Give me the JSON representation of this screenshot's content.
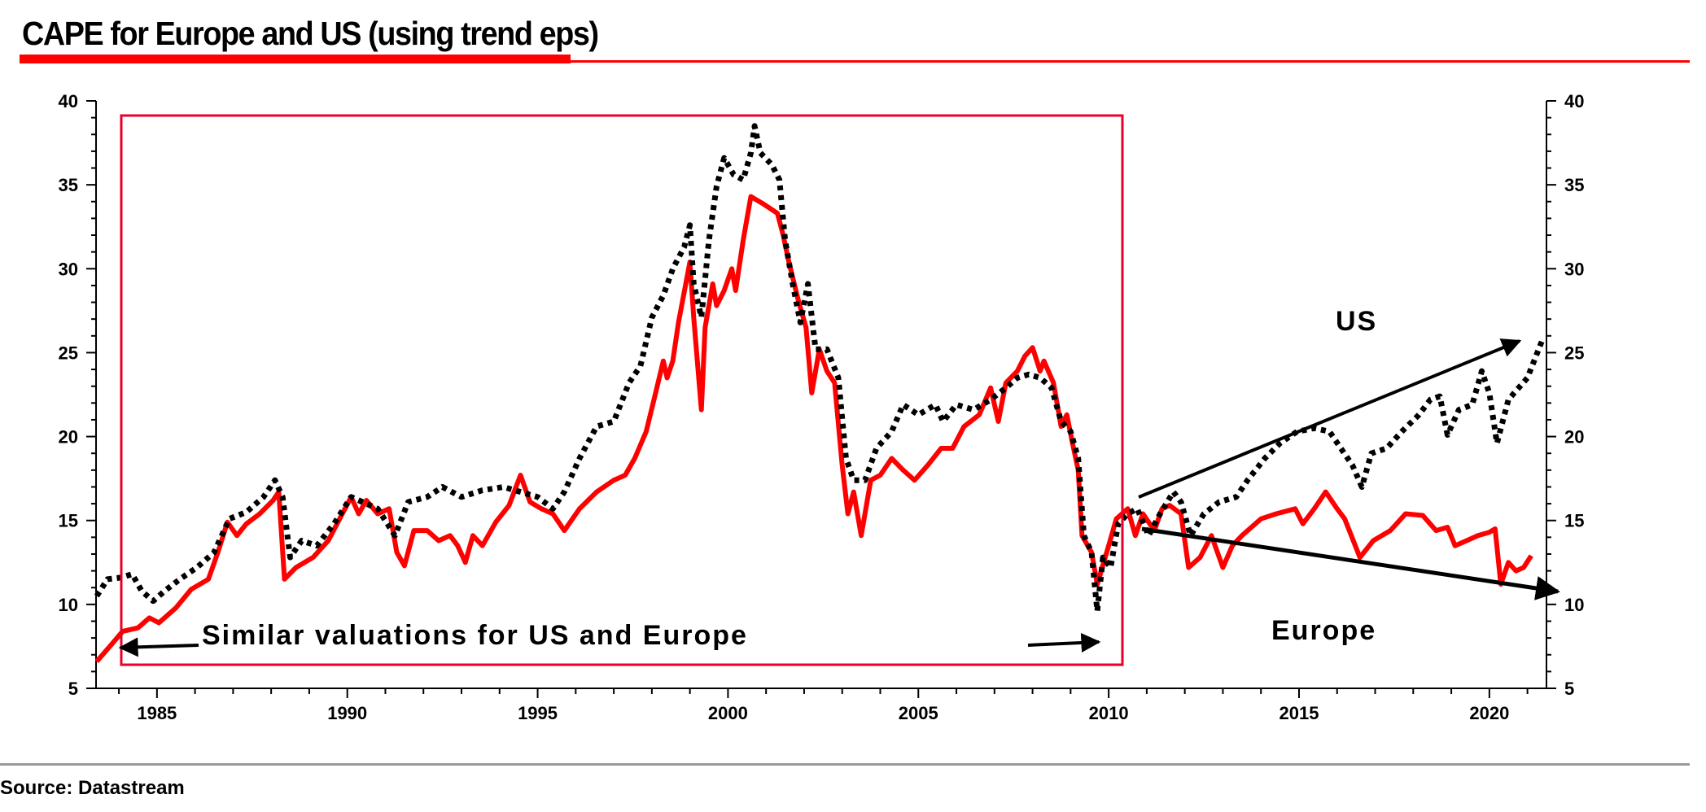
{
  "title": "CAPE for Europe and US (using trend eps)",
  "source": "Source: Datastream",
  "colors": {
    "accent": "#ff0000",
    "europe": "#ff0000",
    "us": "#000000",
    "box": "#e8002a",
    "rule": "#999999"
  },
  "chart_data": {
    "type": "line",
    "title": "CAPE for Europe and US (using trend eps)",
    "xlim": [
      1983.4,
      2021.5
    ],
    "ylim": [
      5,
      40
    ],
    "x_ticks": [
      "1985",
      "1990",
      "1995",
      "2000",
      "2005",
      "2010",
      "2015",
      "2020"
    ],
    "y_ticks_left": [
      "5",
      "10",
      "15",
      "20",
      "25",
      "30",
      "35",
      "40"
    ],
    "y_ticks_right": [
      "5",
      "10",
      "15",
      "20",
      "25",
      "30",
      "35",
      "40"
    ],
    "grid": false,
    "legend": "none",
    "series": [
      {
        "name": "Europe",
        "style": "solid",
        "color": "#ff0000",
        "points": [
          [
            1983.42,
            6.6
          ],
          [
            1983.8,
            7.6
          ],
          [
            1984.1,
            8.4
          ],
          [
            1984.5,
            8.6
          ],
          [
            1984.8,
            9.2
          ],
          [
            1985.05,
            8.9
          ],
          [
            1985.5,
            9.8
          ],
          [
            1985.9,
            10.9
          ],
          [
            1986.35,
            11.5
          ],
          [
            1986.6,
            13.1
          ],
          [
            1986.85,
            14.9
          ],
          [
            1987.1,
            14.1
          ],
          [
            1987.35,
            14.8
          ],
          [
            1987.7,
            15.4
          ],
          [
            1988.05,
            16.2
          ],
          [
            1988.2,
            16.7
          ],
          [
            1988.35,
            11.5
          ],
          [
            1988.65,
            12.2
          ],
          [
            1989.1,
            12.8
          ],
          [
            1989.5,
            13.8
          ],
          [
            1989.8,
            15.1
          ],
          [
            1990.1,
            16.4
          ],
          [
            1990.3,
            15.4
          ],
          [
            1990.5,
            16.2
          ],
          [
            1990.8,
            15.4
          ],
          [
            1991.1,
            15.7
          ],
          [
            1991.3,
            13.1
          ],
          [
            1991.5,
            12.3
          ],
          [
            1991.75,
            14.4
          ],
          [
            1992.1,
            14.4
          ],
          [
            1992.4,
            13.8
          ],
          [
            1992.7,
            14.1
          ],
          [
            1992.9,
            13.5
          ],
          [
            1993.1,
            12.5
          ],
          [
            1993.3,
            14.1
          ],
          [
            1993.55,
            13.5
          ],
          [
            1993.9,
            14.9
          ],
          [
            1994.25,
            15.9
          ],
          [
            1994.55,
            17.7
          ],
          [
            1994.8,
            16.1
          ],
          [
            1995.1,
            15.7
          ],
          [
            1995.4,
            15.4
          ],
          [
            1995.7,
            14.4
          ],
          [
            1996.1,
            15.7
          ],
          [
            1996.55,
            16.7
          ],
          [
            1997.0,
            17.4
          ],
          [
            1997.3,
            17.7
          ],
          [
            1997.55,
            18.7
          ],
          [
            1997.85,
            20.3
          ],
          [
            1998.1,
            22.6
          ],
          [
            1998.3,
            24.5
          ],
          [
            1998.4,
            23.5
          ],
          [
            1998.55,
            24.5
          ],
          [
            1998.7,
            26.8
          ],
          [
            1999.0,
            30.4
          ],
          [
            1999.1,
            27.1
          ],
          [
            1999.3,
            21.6
          ],
          [
            1999.4,
            26.5
          ],
          [
            1999.6,
            29.1
          ],
          [
            1999.7,
            27.8
          ],
          [
            1999.9,
            28.7
          ],
          [
            2000.1,
            30.0
          ],
          [
            2000.2,
            28.7
          ],
          [
            2000.4,
            31.7
          ],
          [
            2000.6,
            34.3
          ],
          [
            2000.9,
            33.9
          ],
          [
            2001.1,
            33.6
          ],
          [
            2001.3,
            33.3
          ],
          [
            2001.45,
            32.0
          ],
          [
            2001.6,
            30.4
          ],
          [
            2001.85,
            28.1
          ],
          [
            2002.05,
            26.5
          ],
          [
            2002.2,
            22.6
          ],
          [
            2002.4,
            25.2
          ],
          [
            2002.6,
            23.9
          ],
          [
            2002.8,
            23.2
          ],
          [
            2003.0,
            18.3
          ],
          [
            2003.15,
            15.4
          ],
          [
            2003.3,
            16.7
          ],
          [
            2003.5,
            14.1
          ],
          [
            2003.75,
            17.4
          ],
          [
            2004.0,
            17.7
          ],
          [
            2004.3,
            18.7
          ],
          [
            2004.6,
            18.0
          ],
          [
            2004.9,
            17.4
          ],
          [
            2005.25,
            18.3
          ],
          [
            2005.6,
            19.3
          ],
          [
            2005.9,
            19.3
          ],
          [
            2006.2,
            20.6
          ],
          [
            2006.6,
            21.3
          ],
          [
            2006.9,
            22.9
          ],
          [
            2007.1,
            20.9
          ],
          [
            2007.3,
            23.2
          ],
          [
            2007.6,
            23.9
          ],
          [
            2007.8,
            24.8
          ],
          [
            2008.0,
            25.3
          ],
          [
            2008.2,
            23.9
          ],
          [
            2008.3,
            24.5
          ],
          [
            2008.55,
            23.2
          ],
          [
            2008.75,
            20.6
          ],
          [
            2008.9,
            21.3
          ],
          [
            2009.05,
            19.6
          ],
          [
            2009.2,
            18.0
          ],
          [
            2009.3,
            14.1
          ],
          [
            2009.55,
            13.1
          ],
          [
            2009.7,
            11.2
          ],
          [
            2010.0,
            13.5
          ],
          [
            2010.2,
            15.1
          ],
          [
            2010.5,
            15.7
          ],
          [
            2010.7,
            14.1
          ],
          [
            2010.9,
            15.4
          ],
          [
            2011.2,
            14.4
          ],
          [
            2011.4,
            15.7
          ],
          [
            2011.6,
            15.9
          ],
          [
            2011.9,
            15.4
          ],
          [
            2012.1,
            12.2
          ],
          [
            2012.4,
            12.8
          ],
          [
            2012.7,
            14.1
          ],
          [
            2013.0,
            12.2
          ],
          [
            2013.25,
            13.5
          ],
          [
            2013.5,
            14.1
          ],
          [
            2014.0,
            15.1
          ],
          [
            2014.4,
            15.4
          ],
          [
            2014.9,
            15.7
          ],
          [
            2015.1,
            14.8
          ],
          [
            2015.4,
            15.7
          ],
          [
            2015.7,
            16.7
          ],
          [
            2016.0,
            15.7
          ],
          [
            2016.2,
            15.1
          ],
          [
            2016.6,
            12.8
          ],
          [
            2016.95,
            13.8
          ],
          [
            2017.4,
            14.4
          ],
          [
            2017.8,
            15.4
          ],
          [
            2018.25,
            15.3
          ],
          [
            2018.6,
            14.4
          ],
          [
            2018.9,
            14.6
          ],
          [
            2019.1,
            13.5
          ],
          [
            2019.4,
            13.8
          ],
          [
            2019.7,
            14.1
          ],
          [
            2020.0,
            14.3
          ],
          [
            2020.15,
            14.5
          ],
          [
            2020.3,
            11.2
          ],
          [
            2020.5,
            12.5
          ],
          [
            2020.7,
            12.0
          ],
          [
            2020.9,
            12.2
          ],
          [
            2021.1,
            12.9
          ]
        ]
      },
      {
        "name": "US",
        "style": "dotted",
        "color": "#000000",
        "points": [
          [
            1983.42,
            10.5
          ],
          [
            1983.7,
            11.5
          ],
          [
            1984.05,
            11.6
          ],
          [
            1984.35,
            11.8
          ],
          [
            1984.6,
            10.8
          ],
          [
            1984.9,
            10.2
          ],
          [
            1985.2,
            10.8
          ],
          [
            1985.6,
            11.5
          ],
          [
            1986.05,
            12.2
          ],
          [
            1986.5,
            13.1
          ],
          [
            1986.9,
            15.1
          ],
          [
            1987.35,
            15.5
          ],
          [
            1987.8,
            16.4
          ],
          [
            1988.1,
            17.4
          ],
          [
            1988.3,
            16.4
          ],
          [
            1988.5,
            12.8
          ],
          [
            1988.8,
            13.8
          ],
          [
            1989.2,
            13.5
          ],
          [
            1989.65,
            14.8
          ],
          [
            1990.1,
            16.4
          ],
          [
            1990.4,
            16.1
          ],
          [
            1990.8,
            15.7
          ],
          [
            1991.25,
            14.1
          ],
          [
            1991.6,
            16.1
          ],
          [
            1992.1,
            16.4
          ],
          [
            1992.5,
            17.0
          ],
          [
            1993.0,
            16.4
          ],
          [
            1993.55,
            16.8
          ],
          [
            1994.1,
            17.0
          ],
          [
            1994.55,
            16.7
          ],
          [
            1995.0,
            16.4
          ],
          [
            1995.4,
            15.7
          ],
          [
            1995.7,
            16.7
          ],
          [
            1996.1,
            18.7
          ],
          [
            1996.55,
            20.6
          ],
          [
            1997.0,
            20.9
          ],
          [
            1997.4,
            23.2
          ],
          [
            1997.7,
            24.2
          ],
          [
            1998.0,
            27.1
          ],
          [
            1998.3,
            28.4
          ],
          [
            1998.55,
            30.0
          ],
          [
            1998.85,
            31.3
          ],
          [
            1999.0,
            32.6
          ],
          [
            1999.1,
            29.1
          ],
          [
            1999.3,
            27.1
          ],
          [
            1999.5,
            31.7
          ],
          [
            1999.7,
            34.9
          ],
          [
            1999.9,
            36.6
          ],
          [
            2000.15,
            35.6
          ],
          [
            2000.4,
            35.3
          ],
          [
            2000.6,
            36.9
          ],
          [
            2000.7,
            38.5
          ],
          [
            2000.85,
            36.9
          ],
          [
            2001.15,
            36.2
          ],
          [
            2001.35,
            35.3
          ],
          [
            2001.5,
            31.7
          ],
          [
            2001.7,
            29.1
          ],
          [
            2001.9,
            26.8
          ],
          [
            2002.1,
            29.1
          ],
          [
            2002.3,
            25.2
          ],
          [
            2002.6,
            25.2
          ],
          [
            2002.9,
            23.5
          ],
          [
            2003.1,
            18.7
          ],
          [
            2003.3,
            17.4
          ],
          [
            2003.6,
            17.4
          ],
          [
            2003.9,
            19.3
          ],
          [
            2004.3,
            20.3
          ],
          [
            2004.6,
            21.9
          ],
          [
            2005.0,
            21.3
          ],
          [
            2005.45,
            21.9
          ],
          [
            2005.65,
            20.9
          ],
          [
            2006.0,
            21.9
          ],
          [
            2006.45,
            21.6
          ],
          [
            2006.9,
            22.2
          ],
          [
            2007.3,
            22.9
          ],
          [
            2007.6,
            23.5
          ],
          [
            2007.9,
            23.7
          ],
          [
            2008.2,
            23.5
          ],
          [
            2008.5,
            22.9
          ],
          [
            2008.75,
            20.9
          ],
          [
            2009.0,
            20.3
          ],
          [
            2009.2,
            18.7
          ],
          [
            2009.35,
            14.1
          ],
          [
            2009.55,
            13.1
          ],
          [
            2009.7,
            9.6
          ],
          [
            2009.85,
            12.8
          ],
          [
            2010.05,
            12.2
          ],
          [
            2010.25,
            14.8
          ],
          [
            2010.5,
            15.4
          ],
          [
            2010.75,
            15.7
          ],
          [
            2011.05,
            14.1
          ],
          [
            2011.35,
            15.4
          ],
          [
            2011.7,
            16.7
          ],
          [
            2011.9,
            16.1
          ],
          [
            2012.15,
            14.1
          ],
          [
            2012.5,
            15.4
          ],
          [
            2012.9,
            16.1
          ],
          [
            2013.35,
            16.4
          ],
          [
            2013.65,
            17.4
          ],
          [
            2014.1,
            18.7
          ],
          [
            2014.5,
            19.6
          ],
          [
            2014.95,
            20.3
          ],
          [
            2015.4,
            20.5
          ],
          [
            2015.8,
            20.3
          ],
          [
            2016.1,
            19.3
          ],
          [
            2016.4,
            18.3
          ],
          [
            2016.65,
            17.0
          ],
          [
            2016.9,
            19.0
          ],
          [
            2017.3,
            19.3
          ],
          [
            2017.7,
            20.3
          ],
          [
            2018.15,
            21.3
          ],
          [
            2018.45,
            22.2
          ],
          [
            2018.7,
            22.4
          ],
          [
            2018.9,
            20.1
          ],
          [
            2019.2,
            21.6
          ],
          [
            2019.55,
            21.9
          ],
          [
            2019.8,
            23.9
          ],
          [
            2020.0,
            22.6
          ],
          [
            2020.2,
            19.6
          ],
          [
            2020.5,
            22.2
          ],
          [
            2021.0,
            23.5
          ],
          [
            2021.4,
            25.8
          ]
        ]
      }
    ],
    "annotations": {
      "box_text": "Similar valuations for US and Europe",
      "us_label": "US",
      "europe_label": "Europe"
    }
  }
}
